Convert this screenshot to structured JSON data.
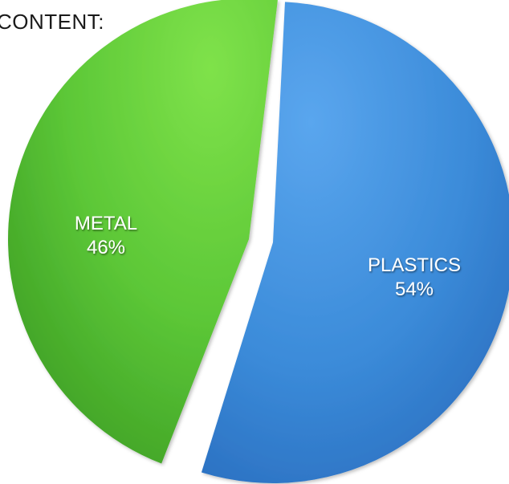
{
  "chart_data": {
    "type": "pie",
    "title": "CONTENT:",
    "slices": [
      {
        "label": "PLASTICS",
        "value": 54,
        "display": "54%",
        "color": "#3c8ddb"
      },
      {
        "label": "METAL",
        "value": 46,
        "display": "46%",
        "color": "#5cc93a"
      }
    ]
  }
}
